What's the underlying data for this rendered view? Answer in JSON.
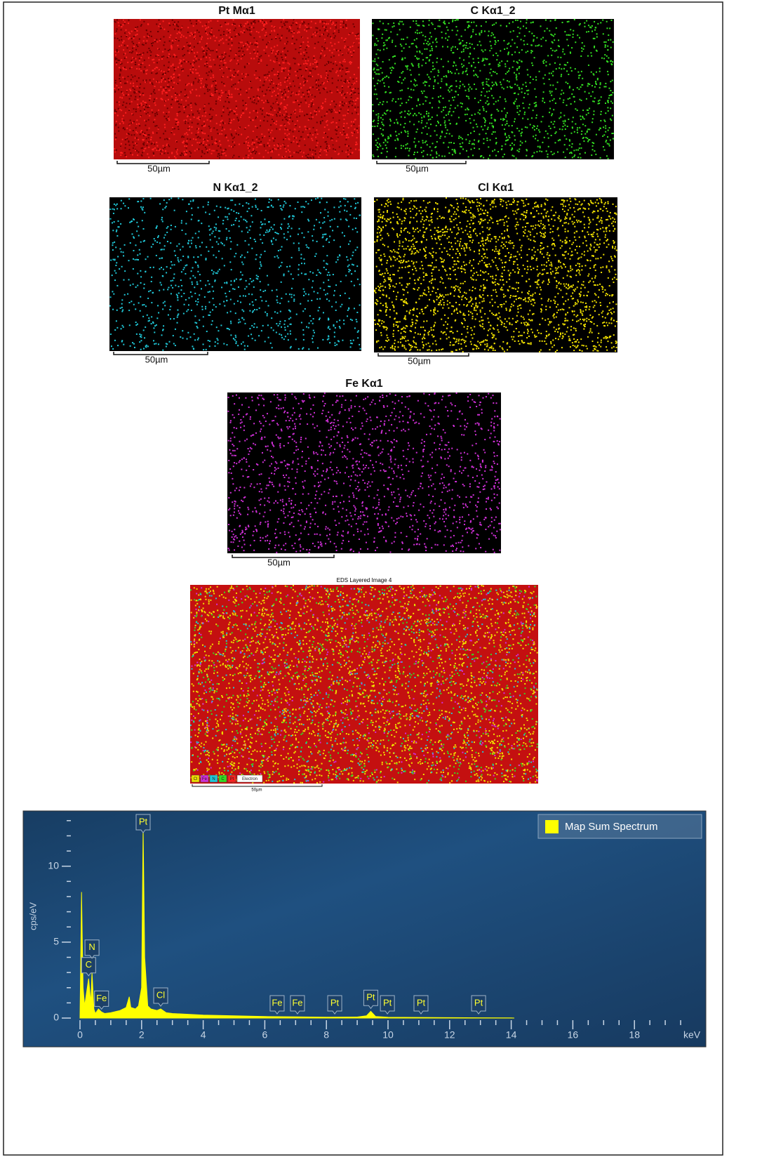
{
  "maps": [
    {
      "title": "Pt Mα1",
      "scale": "50µm",
      "color": "#ff2020"
    },
    {
      "title": "C Kα1_2",
      "scale": "50µm",
      "color": "#33dd22"
    },
    {
      "title": "N Kα1_2",
      "scale": "50µm",
      "color": "#20c8d8"
    },
    {
      "title": "Cl Kα1",
      "scale": "50µm",
      "color": "#f0e000"
    },
    {
      "title": "Fe Kα1",
      "scale": "50µm",
      "color": "#d030d8"
    }
  ],
  "layered_image": {
    "title": "EDS Layered Image 4",
    "scale": "50µm",
    "legend": [
      {
        "label": "Cl",
        "color": "#f0e000"
      },
      {
        "label": "Fe",
        "color": "#d030d8"
      },
      {
        "label": "N",
        "color": "#20c8d8"
      },
      {
        "label": "C",
        "color": "#33dd22"
      },
      {
        "label": "Pt",
        "color": "#ff2020"
      },
      {
        "label": "Electron",
        "color": "#ffffff"
      }
    ]
  },
  "chart_data": {
    "type": "area",
    "ylabel": "cps/eV",
    "xlabel": "keV",
    "x": [
      0,
      0.05,
      0.1,
      0.15,
      0.28,
      0.35,
      0.39,
      0.45,
      0.5,
      0.6,
      0.7,
      0.8,
      1.0,
      1.3,
      1.5,
      1.6,
      1.65,
      1.8,
      1.9,
      2.0,
      2.05,
      2.1,
      2.2,
      2.3,
      2.5,
      2.62,
      2.8,
      3,
      4,
      5,
      6,
      7,
      8,
      9,
      9.3,
      9.44,
      9.6,
      10,
      11,
      12,
      13,
      14,
      14.1
    ],
    "series": [
      {
        "name": "Map Sum Spectrum",
        "color": "#ffff00",
        "values": [
          0,
          8.3,
          2,
          0.8,
          2.6,
          1.0,
          3.0,
          0.6,
          0.3,
          0.6,
          0.4,
          0.3,
          0.35,
          0.5,
          0.7,
          1.4,
          0.7,
          0.6,
          0.8,
          2.0,
          12.5,
          4,
          0.8,
          0.6,
          0.5,
          0.6,
          0.35,
          0.3,
          0.2,
          0.15,
          0.1,
          0.08,
          0.06,
          0.07,
          0.15,
          0.45,
          0.1,
          0.05,
          0.04,
          0.03,
          0.02,
          0.01,
          0
        ]
      }
    ],
    "annotations": [
      {
        "text": "Pt",
        "x": 2.05
      },
      {
        "text": "C",
        "x": 0.28
      },
      {
        "text": "N",
        "x": 0.39
      },
      {
        "text": "Fe",
        "x": 0.7
      },
      {
        "text": "Cl",
        "x": 2.62
      },
      {
        "text": "Fe",
        "x": 6.4
      },
      {
        "text": "Fe",
        "x": 7.06
      },
      {
        "text": "Pt",
        "x": 8.27
      },
      {
        "text": "Pt",
        "x": 9.44
      },
      {
        "text": "Pt",
        "x": 9.98
      },
      {
        "text": "Pt",
        "x": 11.07
      },
      {
        "text": "Pt",
        "x": 12.94
      }
    ],
    "xlim": [
      0,
      20
    ],
    "ylim": [
      0,
      13.5
    ],
    "xticks": [
      0,
      2,
      4,
      6,
      8,
      10,
      12,
      14,
      16,
      18
    ],
    "yticks": [
      0,
      5,
      10
    ],
    "xminorticks": [
      0.5,
      1,
      1.5,
      2.5,
      3,
      3.5,
      4.5,
      5,
      5.5,
      6.5,
      7,
      7.5,
      8.5,
      9,
      9.5,
      10.5,
      11,
      11.5,
      12.5,
      13,
      13.5,
      14.5,
      15,
      15.5,
      16.5,
      17,
      17.5,
      18.5,
      19,
      19.5
    ],
    "yminorticks": [
      1,
      2,
      3,
      4,
      6,
      7,
      8,
      9,
      11,
      12,
      13
    ],
    "legend": "top-right"
  }
}
